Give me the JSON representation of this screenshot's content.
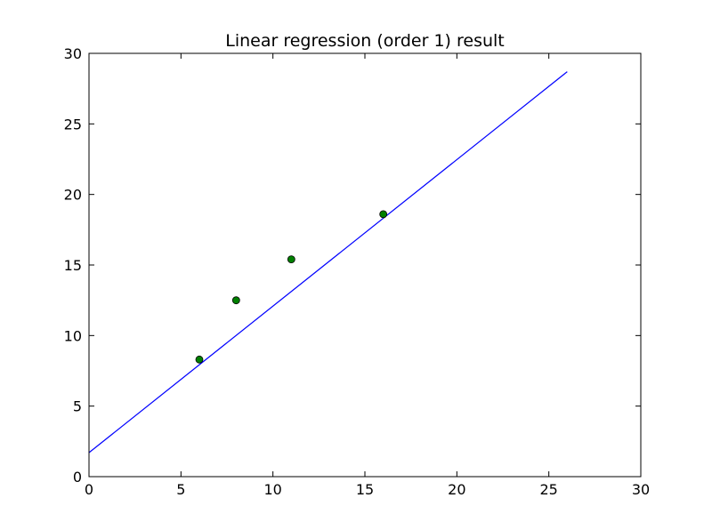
{
  "chart_data": {
    "type": "scatter",
    "title": "Linear regression (order 1) result",
    "xlabel": "",
    "ylabel": "",
    "xlim": [
      0,
      30
    ],
    "ylim": [
      0,
      30
    ],
    "xticks": [
      0,
      5,
      10,
      15,
      20,
      25,
      30
    ],
    "yticks": [
      0,
      5,
      10,
      15,
      20,
      25,
      30
    ],
    "grid": false,
    "series": [
      {
        "kind": "points",
        "color": "#008000",
        "x": [
          6,
          8,
          11,
          16
        ],
        "y": [
          8.3,
          12.5,
          15.4,
          18.6
        ]
      },
      {
        "kind": "line",
        "color": "#0000ff",
        "x": [
          0,
          26
        ],
        "y": [
          1.7,
          28.7
        ]
      }
    ]
  }
}
